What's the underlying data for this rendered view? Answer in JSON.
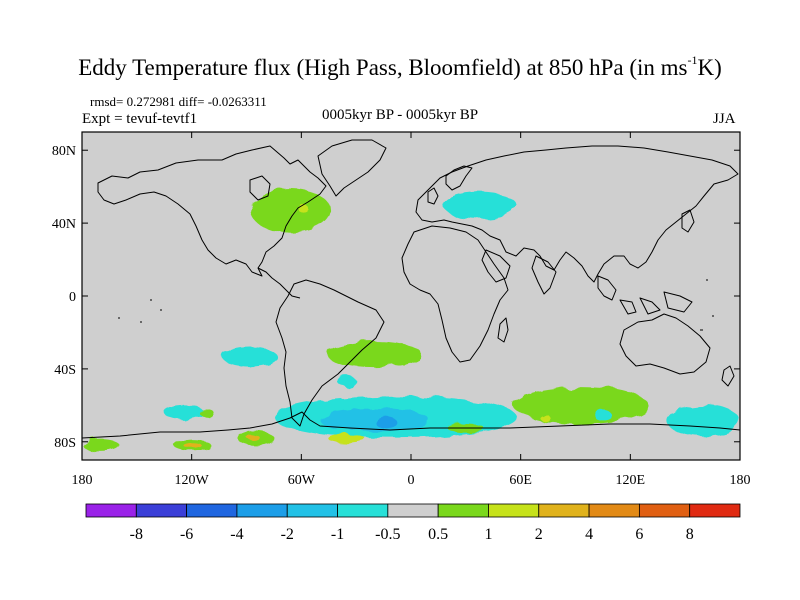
{
  "title": {
    "main": "Eddy Temperature flux (High Pass, Bloomfield) at 850 hPa (in ms",
    "sup": "-1",
    "end": "K)"
  },
  "stats": "rmsd= 0.272981 diff= -0.0263311",
  "expt": "Expt = tevuf-tevtf1",
  "period": "0005kyr BP - 0005kyr BP",
  "season": "JJA",
  "chart_data": {
    "type": "heatmap",
    "projection": "cylindrical-equidistant",
    "xlim": [
      -180,
      180
    ],
    "ylim": [
      -90,
      90
    ],
    "x_ticks": [
      {
        "value": -180,
        "label": "180"
      },
      {
        "value": -120,
        "label": "120W"
      },
      {
        "value": -60,
        "label": "60W"
      },
      {
        "value": 0,
        "label": "0"
      },
      {
        "value": 60,
        "label": "60E"
      },
      {
        "value": 120,
        "label": "120E"
      },
      {
        "value": 180,
        "label": "180"
      }
    ],
    "y_ticks": [
      {
        "value": 80,
        "label": "80N"
      },
      {
        "value": 40,
        "label": "40N"
      },
      {
        "value": 0,
        "label": "0"
      },
      {
        "value": -40,
        "label": "40S"
      },
      {
        "value": -80,
        "label": "80S"
      }
    ],
    "background_color": "#cfcfcf",
    "levels": [
      {
        "label": "-8",
        "color": "#8d2ee0"
      },
      {
        "label": "-6",
        "color": "#3b3fd8"
      },
      {
        "label": "-4",
        "color": "#1f66e0"
      },
      {
        "label": "-2",
        "color": "#1c9ee8"
      },
      {
        "label": "-1",
        "color": "#22c1e6"
      },
      {
        "label": "-0.5",
        "color": "#27e0d8"
      },
      {
        "label": "0.5",
        "color": "#cfcfcf"
      },
      {
        "label": "1",
        "color": "#7ad81c"
      },
      {
        "label": "2",
        "color": "#c6e21a"
      },
      {
        "label": "4",
        "color": "#e0b21c"
      },
      {
        "label": "6",
        "color": "#e28a16"
      },
      {
        "label": "8",
        "color": "#e05f12"
      }
    ],
    "end_colors": {
      "low": "#9a22e8",
      "high": "#e02a12"
    },
    "anomalies": [
      {
        "lon": [
          -88,
          -44
        ],
        "lat": [
          35,
          59
        ],
        "level": "1"
      },
      {
        "lon": [
          -62,
          -56
        ],
        "lat": [
          46,
          50
        ],
        "level": "2"
      },
      {
        "lon": [
          18,
          58
        ],
        "lat": [
          42,
          57
        ],
        "level": "-0.5"
      },
      {
        "lon": [
          -103,
          -73
        ],
        "lat": [
          -28,
          -39
        ],
        "level": "-0.5"
      },
      {
        "lon": [
          -46,
          6
        ],
        "lat": [
          -25,
          -39
        ],
        "level": "1"
      },
      {
        "lon": [
          -40,
          -30
        ],
        "lat": [
          -44,
          -50
        ],
        "level": "-0.5"
      },
      {
        "lon": [
          -75,
          58
        ],
        "lat": [
          -55,
          -78
        ],
        "level": "-0.5"
      },
      {
        "lon": [
          -50,
          10
        ],
        "lat": [
          -62,
          -74
        ],
        "level": "-1"
      },
      {
        "lon": [
          -20,
          -8
        ],
        "lat": [
          -66,
          -72
        ],
        "level": "-2"
      },
      {
        "lon": [
          20,
          40
        ],
        "lat": [
          -70,
          -75
        ],
        "level": "1"
      },
      {
        "lon": [
          56,
          130
        ],
        "lat": [
          -50,
          -70
        ],
        "level": "1"
      },
      {
        "lon": [
          100,
          110
        ],
        "lat": [
          -63,
          -68
        ],
        "level": "-0.5"
      },
      {
        "lon": [
          70,
          76
        ],
        "lat": [
          -65,
          -68
        ],
        "level": "2"
      },
      {
        "lon": [
          140,
          180
        ],
        "lat": [
          -60,
          -77
        ],
        "level": "-0.5"
      },
      {
        "lon": [
          -180,
          -160
        ],
        "lat": [
          -78,
          -85
        ],
        "level": "1"
      },
      {
        "lon": [
          -130,
          -110
        ],
        "lat": [
          -78,
          -85
        ],
        "level": "1"
      },
      {
        "lon": [
          -125,
          -115
        ],
        "lat": [
          -80,
          -83
        ],
        "level": "4"
      },
      {
        "lon": [
          -95,
          -75
        ],
        "lat": [
          -74,
          -82
        ],
        "level": "1"
      },
      {
        "lon": [
          -90,
          -83
        ],
        "lat": [
          -76,
          -79
        ],
        "level": "4"
      },
      {
        "lon": [
          -135,
          -113
        ],
        "lat": [
          -60,
          -68
        ],
        "level": "-0.5"
      },
      {
        "lon": [
          -116,
          -108
        ],
        "lat": [
          -62,
          -66
        ],
        "level": "1"
      },
      {
        "lon": [
          -45,
          -25
        ],
        "lat": [
          -76,
          -81
        ],
        "level": "2"
      }
    ]
  }
}
